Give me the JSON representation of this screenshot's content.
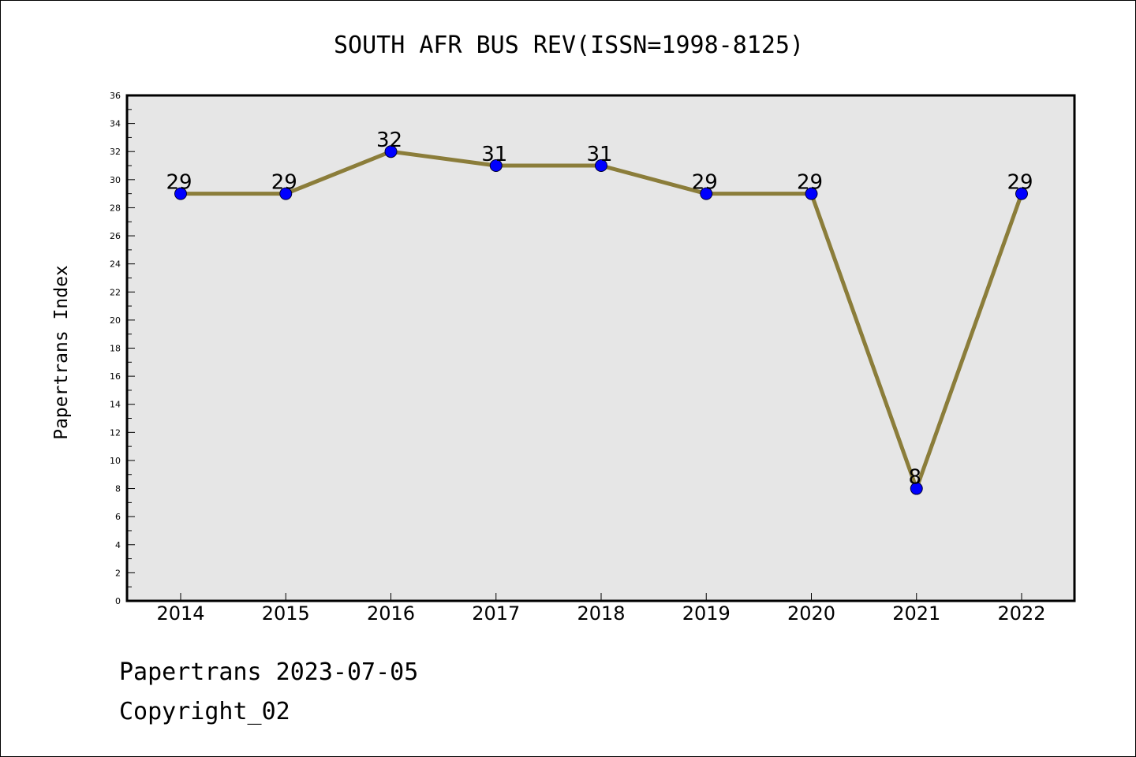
{
  "chart_data": {
    "type": "line",
    "title": "SOUTH AFR BUS REV(ISSN=1998-8125)",
    "xlabel": "",
    "ylabel": "Papertrans Index",
    "categories": [
      "2014",
      "2015",
      "2016",
      "2017",
      "2018",
      "2019",
      "2020",
      "2021",
      "2022"
    ],
    "series": [
      {
        "values": [
          29,
          29,
          32,
          31,
          31,
          29,
          29,
          8,
          29
        ]
      }
    ],
    "data_labels": [
      "29",
      "29",
      "32",
      "31",
      "31",
      "29",
      "29",
      "8",
      "29"
    ],
    "ylim": [
      0,
      36
    ],
    "y_ticks": [
      0,
      2,
      4,
      6,
      8,
      10,
      12,
      14,
      16,
      18,
      20,
      22,
      24,
      26,
      28,
      30,
      32,
      34,
      36
    ],
    "grid": false,
    "colors": {
      "plot_background": "#e6e6e6",
      "line": "#8b7d3a",
      "marker": "#0000ff"
    }
  },
  "footer": {
    "date_text": "Papertrans 2023-07-05",
    "copyright_text": "Copyright_02"
  }
}
